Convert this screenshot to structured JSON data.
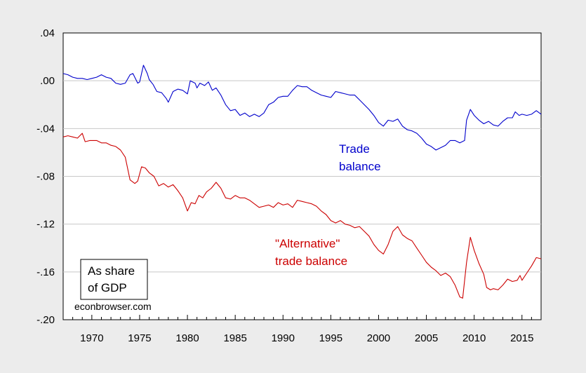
{
  "chart_data": {
    "type": "line",
    "title": "",
    "xlabel": "",
    "ylabel": "",
    "xlim": [
      1967,
      2017
    ],
    "ylim": [
      -0.2,
      0.04
    ],
    "yticks": [
      ".04",
      ".00",
      "-.04",
      "-.08",
      "-.12",
      "-.16",
      "-.20"
    ],
    "ytick_values": [
      0.04,
      0.0,
      -0.04,
      -0.08,
      -0.12,
      -0.16,
      -0.2
    ],
    "xticks": [
      "1970",
      "1975",
      "1980",
      "1985",
      "1990",
      "1995",
      "2000",
      "2005",
      "2010",
      "2015"
    ],
    "xtick_values": [
      1970,
      1975,
      1980,
      1985,
      1990,
      1995,
      2000,
      2005,
      2010,
      2015
    ],
    "grid": true,
    "series": [
      {
        "name": "Trade balance",
        "label_lines": [
          "Trade",
          "balance"
        ],
        "color": "#0000cc",
        "points": [
          [
            1967.0,
            0.006
          ],
          [
            1967.5,
            0.005
          ],
          [
            1968.0,
            0.003
          ],
          [
            1968.5,
            0.002
          ],
          [
            1969.0,
            0.002
          ],
          [
            1969.5,
            0.001
          ],
          [
            1970.0,
            0.002
          ],
          [
            1970.5,
            0.003
          ],
          [
            1971.0,
            0.005
          ],
          [
            1971.5,
            0.003
          ],
          [
            1972.0,
            0.002
          ],
          [
            1972.5,
            -0.002
          ],
          [
            1973.0,
            -0.003
          ],
          [
            1973.5,
            -0.002
          ],
          [
            1974.0,
            0.005
          ],
          [
            1974.3,
            0.006
          ],
          [
            1974.8,
            -0.002
          ],
          [
            1975.0,
            -0.001
          ],
          [
            1975.4,
            0.013
          ],
          [
            1975.8,
            0.006
          ],
          [
            1976.0,
            0.001
          ],
          [
            1976.4,
            -0.003
          ],
          [
            1976.8,
            -0.009
          ],
          [
            1977.3,
            -0.01
          ],
          [
            1977.8,
            -0.015
          ],
          [
            1978.0,
            -0.018
          ],
          [
            1978.5,
            -0.009
          ],
          [
            1979.0,
            -0.007
          ],
          [
            1979.5,
            -0.008
          ],
          [
            1980.0,
            -0.011
          ],
          [
            1980.3,
            0.0
          ],
          [
            1980.8,
            -0.002
          ],
          [
            1981.0,
            -0.006
          ],
          [
            1981.3,
            -0.002
          ],
          [
            1981.8,
            -0.004
          ],
          [
            1982.2,
            -0.001
          ],
          [
            1982.6,
            -0.008
          ],
          [
            1983.0,
            -0.006
          ],
          [
            1983.5,
            -0.012
          ],
          [
            1984.0,
            -0.02
          ],
          [
            1984.5,
            -0.025
          ],
          [
            1985.0,
            -0.024
          ],
          [
            1985.5,
            -0.029
          ],
          [
            1986.0,
            -0.027
          ],
          [
            1986.5,
            -0.03
          ],
          [
            1987.0,
            -0.028
          ],
          [
            1987.5,
            -0.03
          ],
          [
            1988.0,
            -0.027
          ],
          [
            1988.5,
            -0.02
          ],
          [
            1989.0,
            -0.018
          ],
          [
            1989.5,
            -0.014
          ],
          [
            1990.0,
            -0.013
          ],
          [
            1990.5,
            -0.013
          ],
          [
            1991.0,
            -0.008
          ],
          [
            1991.5,
            -0.004
          ],
          [
            1992.0,
            -0.005
          ],
          [
            1992.5,
            -0.005
          ],
          [
            1993.0,
            -0.008
          ],
          [
            1993.5,
            -0.01
          ],
          [
            1994.0,
            -0.012
          ],
          [
            1994.5,
            -0.013
          ],
          [
            1995.0,
            -0.014
          ],
          [
            1995.5,
            -0.009
          ],
          [
            1996.0,
            -0.01
          ],
          [
            1996.5,
            -0.011
          ],
          [
            1997.0,
            -0.012
          ],
          [
            1997.5,
            -0.012
          ],
          [
            1998.0,
            -0.016
          ],
          [
            1998.5,
            -0.02
          ],
          [
            1999.0,
            -0.024
          ],
          [
            1999.5,
            -0.029
          ],
          [
            2000.0,
            -0.035
          ],
          [
            2000.5,
            -0.038
          ],
          [
            2001.0,
            -0.033
          ],
          [
            2001.5,
            -0.034
          ],
          [
            2002.0,
            -0.032
          ],
          [
            2002.5,
            -0.038
          ],
          [
            2003.0,
            -0.041
          ],
          [
            2003.5,
            -0.042
          ],
          [
            2004.0,
            -0.044
          ],
          [
            2004.5,
            -0.048
          ],
          [
            2005.0,
            -0.053
          ],
          [
            2005.5,
            -0.055
          ],
          [
            2006.0,
            -0.058
          ],
          [
            2006.5,
            -0.056
          ],
          [
            2007.0,
            -0.054
          ],
          [
            2007.5,
            -0.05
          ],
          [
            2008.0,
            -0.05
          ],
          [
            2008.5,
            -0.052
          ],
          [
            2009.0,
            -0.05
          ],
          [
            2009.2,
            -0.033
          ],
          [
            2009.6,
            -0.024
          ],
          [
            2010.0,
            -0.029
          ],
          [
            2010.5,
            -0.033
          ],
          [
            2011.0,
            -0.036
          ],
          [
            2011.5,
            -0.034
          ],
          [
            2012.0,
            -0.037
          ],
          [
            2012.5,
            -0.038
          ],
          [
            2013.0,
            -0.034
          ],
          [
            2013.5,
            -0.031
          ],
          [
            2014.0,
            -0.031
          ],
          [
            2014.3,
            -0.026
          ],
          [
            2014.7,
            -0.029
          ],
          [
            2015.0,
            -0.028
          ],
          [
            2015.5,
            -0.029
          ],
          [
            2016.0,
            -0.028
          ],
          [
            2016.5,
            -0.025
          ],
          [
            2017.0,
            -0.028
          ]
        ]
      },
      {
        "name": "\"Alternative\" trade balance",
        "label_lines": [
          "\"Alternative\"",
          "trade balance"
        ],
        "color": "#cc0000",
        "points": [
          [
            1967.0,
            -0.047
          ],
          [
            1967.5,
            -0.046
          ],
          [
            1968.0,
            -0.047
          ],
          [
            1968.5,
            -0.048
          ],
          [
            1969.0,
            -0.044
          ],
          [
            1969.3,
            -0.051
          ],
          [
            1969.8,
            -0.05
          ],
          [
            1970.5,
            -0.05
          ],
          [
            1971.0,
            -0.052
          ],
          [
            1971.5,
            -0.052
          ],
          [
            1972.0,
            -0.054
          ],
          [
            1972.5,
            -0.055
          ],
          [
            1973.0,
            -0.058
          ],
          [
            1973.5,
            -0.064
          ],
          [
            1974.0,
            -0.083
          ],
          [
            1974.5,
            -0.086
          ],
          [
            1974.8,
            -0.084
          ],
          [
            1975.2,
            -0.072
          ],
          [
            1975.6,
            -0.073
          ],
          [
            1976.0,
            -0.077
          ],
          [
            1976.5,
            -0.08
          ],
          [
            1977.0,
            -0.088
          ],
          [
            1977.5,
            -0.086
          ],
          [
            1978.0,
            -0.089
          ],
          [
            1978.5,
            -0.087
          ],
          [
            1979.0,
            -0.092
          ],
          [
            1979.5,
            -0.098
          ],
          [
            1980.0,
            -0.109
          ],
          [
            1980.4,
            -0.102
          ],
          [
            1980.8,
            -0.103
          ],
          [
            1981.2,
            -0.096
          ],
          [
            1981.6,
            -0.098
          ],
          [
            1982.0,
            -0.093
          ],
          [
            1982.5,
            -0.09
          ],
          [
            1983.0,
            -0.085
          ],
          [
            1983.5,
            -0.09
          ],
          [
            1984.0,
            -0.098
          ],
          [
            1984.5,
            -0.099
          ],
          [
            1985.0,
            -0.096
          ],
          [
            1985.5,
            -0.098
          ],
          [
            1986.0,
            -0.098
          ],
          [
            1986.5,
            -0.1
          ],
          [
            1987.0,
            -0.103
          ],
          [
            1987.5,
            -0.106
          ],
          [
            1988.0,
            -0.105
          ],
          [
            1988.5,
            -0.104
          ],
          [
            1989.0,
            -0.106
          ],
          [
            1989.5,
            -0.102
          ],
          [
            1990.0,
            -0.104
          ],
          [
            1990.5,
            -0.103
          ],
          [
            1991.0,
            -0.106
          ],
          [
            1991.5,
            -0.1
          ],
          [
            1992.0,
            -0.101
          ],
          [
            1992.5,
            -0.102
          ],
          [
            1993.0,
            -0.103
          ],
          [
            1993.5,
            -0.105
          ],
          [
            1994.0,
            -0.109
          ],
          [
            1994.5,
            -0.112
          ],
          [
            1995.0,
            -0.117
          ],
          [
            1995.5,
            -0.119
          ],
          [
            1996.0,
            -0.117
          ],
          [
            1996.5,
            -0.12
          ],
          [
            1997.0,
            -0.121
          ],
          [
            1997.5,
            -0.123
          ],
          [
            1998.0,
            -0.122
          ],
          [
            1998.5,
            -0.126
          ],
          [
            1999.0,
            -0.13
          ],
          [
            1999.5,
            -0.137
          ],
          [
            2000.0,
            -0.142
          ],
          [
            2000.5,
            -0.145
          ],
          [
            2001.0,
            -0.137
          ],
          [
            2001.5,
            -0.126
          ],
          [
            2002.0,
            -0.122
          ],
          [
            2002.5,
            -0.129
          ],
          [
            2003.0,
            -0.132
          ],
          [
            2003.5,
            -0.134
          ],
          [
            2004.0,
            -0.14
          ],
          [
            2004.5,
            -0.146
          ],
          [
            2005.0,
            -0.152
          ],
          [
            2005.5,
            -0.156
          ],
          [
            2006.0,
            -0.159
          ],
          [
            2006.5,
            -0.163
          ],
          [
            2007.0,
            -0.161
          ],
          [
            2007.5,
            -0.164
          ],
          [
            2008.0,
            -0.171
          ],
          [
            2008.5,
            -0.181
          ],
          [
            2008.8,
            -0.182
          ],
          [
            2009.2,
            -0.152
          ],
          [
            2009.6,
            -0.131
          ],
          [
            2010.0,
            -0.142
          ],
          [
            2010.5,
            -0.153
          ],
          [
            2011.0,
            -0.162
          ],
          [
            2011.3,
            -0.173
          ],
          [
            2011.7,
            -0.175
          ],
          [
            2012.0,
            -0.174
          ],
          [
            2012.5,
            -0.175
          ],
          [
            2013.0,
            -0.171
          ],
          [
            2013.5,
            -0.166
          ],
          [
            2014.0,
            -0.168
          ],
          [
            2014.5,
            -0.167
          ],
          [
            2014.8,
            -0.163
          ],
          [
            2015.0,
            -0.167
          ],
          [
            2015.5,
            -0.161
          ],
          [
            2016.0,
            -0.155
          ],
          [
            2016.5,
            -0.148
          ],
          [
            2017.0,
            -0.149
          ]
        ]
      }
    ],
    "annotations": {
      "box_lines": [
        "As share",
        "of GDP"
      ],
      "source": "econbrowser.com"
    }
  }
}
